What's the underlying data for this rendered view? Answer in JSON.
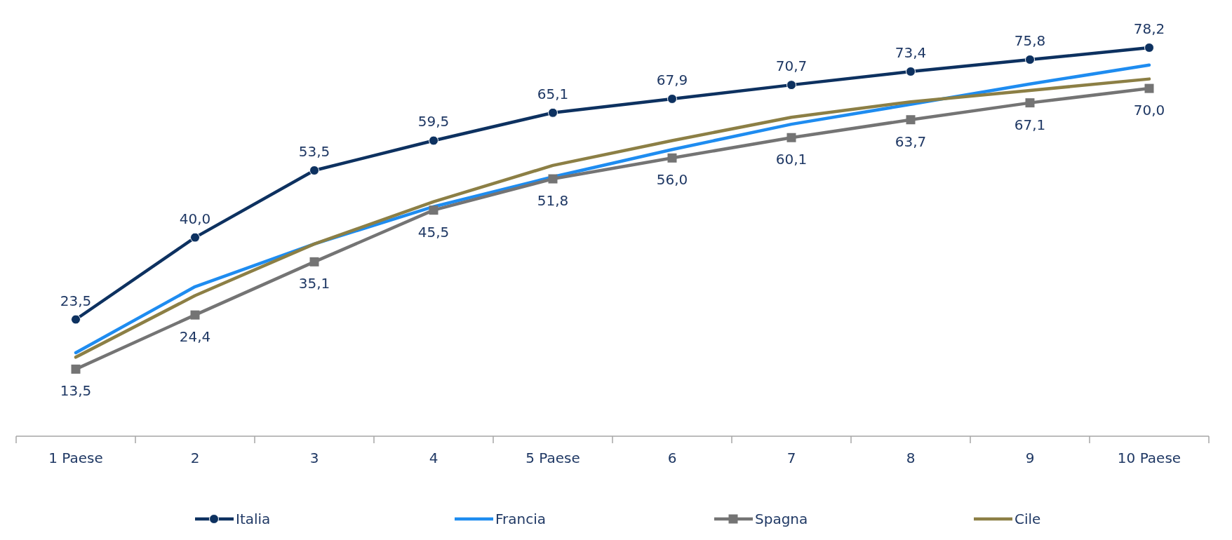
{
  "chart_data": {
    "type": "line",
    "categories": [
      "1 Paese",
      "2",
      "3",
      "4",
      "5 Paese",
      "6",
      "7",
      "8",
      "9",
      "10 Paese"
    ],
    "legend": "bottom",
    "tick_labels": "x",
    "line_style": "solid",
    "series": [
      {
        "name": "Italia",
        "color": "#0d3160",
        "marker": "circle",
        "values": [
          23.5,
          40.0,
          53.5,
          59.5,
          65.1,
          67.9,
          70.7,
          73.4,
          75.8,
          78.2
        ],
        "value_labels": [
          "23,5",
          "40,0",
          "53,5",
          "59,5",
          "65,1",
          "67,9",
          "70,7",
          "73,4",
          "75,8",
          "78,2"
        ]
      },
      {
        "name": "Francia",
        "color": "#1e8cf0",
        "marker": "none",
        "values": [
          16.8,
          30.1,
          38.7,
          46.2,
          52.2,
          57.7,
          62.8,
          66.8,
          70.9,
          74.7
        ]
      },
      {
        "name": "Spagna",
        "color": "#747474",
        "marker": "square",
        "values": [
          13.5,
          24.4,
          35.1,
          45.5,
          51.8,
          56.0,
          60.1,
          63.7,
          67.1,
          70.0
        ],
        "value_labels": [
          "13,5",
          "24,4",
          "35,1",
          "45,5",
          "51,8",
          "56,0",
          "60,1",
          "63,7",
          "67,1",
          "70,0"
        ]
      },
      {
        "name": "Cile",
        "color": "#8c7f45",
        "marker": "none",
        "values": [
          15.9,
          28.3,
          38.7,
          47.2,
          54.5,
          59.5,
          64.2,
          67.3,
          69.6,
          71.9
        ]
      }
    ]
  }
}
